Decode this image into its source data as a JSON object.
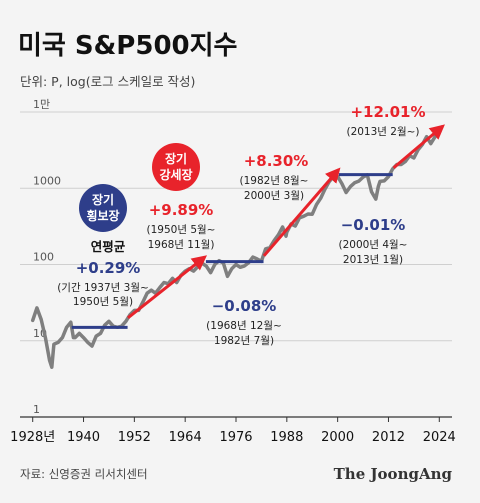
{
  "chart_data": {
    "type": "line",
    "title": "미국 S&P500지수",
    "subtitle": "단위: P, log(로그 스케일로 작성)",
    "yscale": "log",
    "ylim": [
      1,
      10000
    ],
    "xlim": [
      1925,
      2027
    ],
    "y_ticks": [
      {
        "value": 10000,
        "label": "1만"
      },
      {
        "value": 1000,
        "label": "1000"
      },
      {
        "value": 100,
        "label": "100"
      },
      {
        "value": 10,
        "label": "10"
      },
      {
        "value": 1,
        "label": "1"
      }
    ],
    "x_ticks": [
      {
        "value": 1928,
        "label": "1928년"
      },
      {
        "value": 1940,
        "label": "1940"
      },
      {
        "value": 1952,
        "label": "1952"
      },
      {
        "value": 1964,
        "label": "1964"
      },
      {
        "value": 1976,
        "label": "1976"
      },
      {
        "value": 1988,
        "label": "1988"
      },
      {
        "value": 2000,
        "label": "2000"
      },
      {
        "value": 2012,
        "label": "2012"
      },
      {
        "value": 2024,
        "label": "2024"
      }
    ],
    "series": [
      {
        "color": "#7f7f7f",
        "points": [
          [
            1928,
            18.5
          ],
          [
            1929,
            27
          ],
          [
            1930,
            19
          ],
          [
            1931,
            11
          ],
          [
            1932,
            5.5
          ],
          [
            1932.5,
            4.5
          ],
          [
            1933,
            9
          ],
          [
            1934,
            9.5
          ],
          [
            1935,
            11
          ],
          [
            1936,
            15
          ],
          [
            1937,
            17.5
          ],
          [
            1937.6,
            11
          ],
          [
            1938,
            11
          ],
          [
            1939,
            12.5
          ],
          [
            1940,
            11
          ],
          [
            1941,
            9.5
          ],
          [
            1942,
            8.5
          ],
          [
            1943,
            11.5
          ],
          [
            1944,
            12.5
          ],
          [
            1945,
            16
          ],
          [
            1946,
            18
          ],
          [
            1947,
            15.5
          ],
          [
            1948,
            15
          ],
          [
            1949,
            15.5
          ],
          [
            1950,
            18
          ],
          [
            1951,
            22
          ],
          [
            1952,
            25
          ],
          [
            1953,
            25
          ],
          [
            1954,
            32
          ],
          [
            1955,
            42
          ],
          [
            1956,
            46
          ],
          [
            1957,
            42
          ],
          [
            1958,
            50
          ],
          [
            1959,
            58
          ],
          [
            1960,
            56
          ],
          [
            1961,
            66
          ],
          [
            1962,
            58
          ],
          [
            1963,
            72
          ],
          [
            1964,
            82
          ],
          [
            1965,
            88
          ],
          [
            1966,
            82
          ],
          [
            1967,
            94
          ],
          [
            1968,
            104
          ],
          [
            1969,
            95
          ],
          [
            1970,
            78
          ],
          [
            1971,
            100
          ],
          [
            1972,
            112
          ],
          [
            1973,
            105
          ],
          [
            1974,
            70
          ],
          [
            1975,
            88
          ],
          [
            1976,
            100
          ],
          [
            1977,
            92
          ],
          [
            1978,
            96
          ],
          [
            1979,
            106
          ],
          [
            1980,
            125
          ],
          [
            1981,
            118
          ],
          [
            1982,
            110
          ],
          [
            1983,
            160
          ],
          [
            1984,
            167
          ],
          [
            1985,
            205
          ],
          [
            1986,
            245
          ],
          [
            1987,
            310
          ],
          [
            1987.8,
            235
          ],
          [
            1988,
            265
          ],
          [
            1989,
            340
          ],
          [
            1990,
            320
          ],
          [
            1991,
            410
          ],
          [
            1992,
            430
          ],
          [
            1993,
            460
          ],
          [
            1994,
            455
          ],
          [
            1995,
            610
          ],
          [
            1996,
            740
          ],
          [
            1997,
            970
          ],
          [
            1998,
            1220
          ],
          [
            1999,
            1420
          ],
          [
            2000,
            1430
          ],
          [
            2001,
            1150
          ],
          [
            2002,
            880
          ],
          [
            2003,
            1050
          ],
          [
            2004,
            1180
          ],
          [
            2005,
            1240
          ],
          [
            2006,
            1400
          ],
          [
            2007,
            1500
          ],
          [
            2008,
            900
          ],
          [
            2009,
            720
          ],
          [
            2009.6,
            1050
          ],
          [
            2010,
            1230
          ],
          [
            2011,
            1250
          ],
          [
            2012,
            1420
          ],
          [
            2013,
            1800
          ],
          [
            2014,
            2050
          ],
          [
            2015,
            2050
          ],
          [
            2016,
            2240
          ],
          [
            2017,
            2670
          ],
          [
            2018,
            2500
          ],
          [
            2019,
            3200
          ],
          [
            2020,
            3750
          ],
          [
            2021,
            4750
          ],
          [
            2022,
            3850
          ],
          [
            2023,
            4750
          ],
          [
            2024,
            5800
          ]
        ]
      }
    ],
    "period_markers": [
      {
        "kind": "flat",
        "color": "#2e3e8a",
        "x1": 1937.2,
        "x2": 1950.4,
        "y": 15
      },
      {
        "kind": "up",
        "color": "#e8232b",
        "x1": 1950.5,
        "x2": 1968.6,
        "y1": 20,
        "y2": 125
      },
      {
        "kind": "flat",
        "color": "#2e3e8a",
        "x1": 1968.9,
        "x2": 1982.5,
        "y": 109
      },
      {
        "kind": "up",
        "color": "#e8232b",
        "x1": 1982.6,
        "x2": 2000.2,
        "y1": 130,
        "y2": 1750
      },
      {
        "kind": "flat",
        "color": "#2e3e8a",
        "x1": 2000.3,
        "x2": 2013.0,
        "y": 1510
      },
      {
        "kind": "up",
        "color": "#e8232b",
        "x1": 2013.2,
        "x2": 2024.8,
        "y1": 1850,
        "y2": 6500
      }
    ],
    "badges": [
      {
        "lines": [
          "장기",
          "횡보장"
        ],
        "color": "#2e3e8a"
      },
      {
        "lines": [
          "장기",
          "강세장"
        ],
        "color": "#e8232b"
      }
    ],
    "annotations": [
      {
        "header": "연평균",
        "value": "+0.29%",
        "lines": [
          "(기간 1937년 3월~",
          "1950년 5월)"
        ],
        "color": "#2e3e8a"
      },
      {
        "value": "+9.89%",
        "lines": [
          "(1950년 5월~",
          "1968년 11월)"
        ],
        "color": "#e8232b"
      },
      {
        "value": "−0.08%",
        "lines": [
          "(1968년 12월~",
          "1982년 7월)"
        ],
        "color": "#2e3e8a"
      },
      {
        "value": "+8.30%",
        "lines": [
          "(1982년 8월~",
          "2000년 3월)"
        ],
        "color": "#e8232b"
      },
      {
        "value": "−0.01%",
        "lines": [
          "(2000년 4월~",
          "2013년 1월)"
        ],
        "color": "#2e3e8a"
      },
      {
        "value": "+12.01%",
        "lines": [
          "(2013년 2월~)"
        ],
        "color": "#e8232b"
      }
    ]
  },
  "footer": {
    "source": "자료: 신영증권 리서치센터",
    "brand": "The JoongAng"
  }
}
